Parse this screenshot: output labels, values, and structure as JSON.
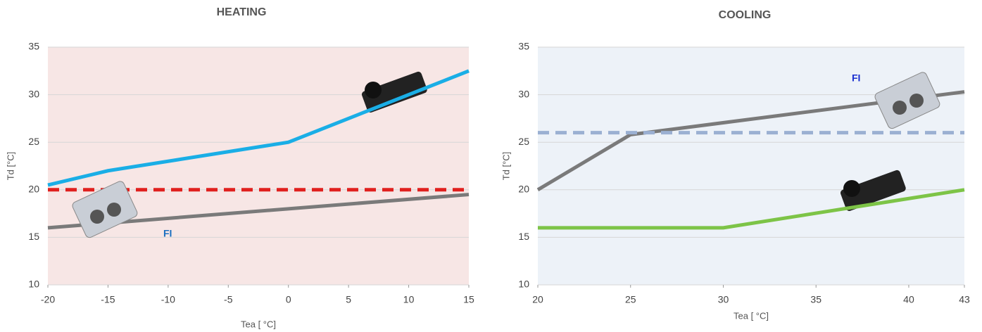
{
  "chart_data": [
    {
      "type": "line",
      "title": "HEATING",
      "x_label": "Tea [ °C]",
      "y_label": "Td [°C]",
      "xlim": [
        -20,
        15
      ],
      "xticks": [
        -20,
        -15,
        -10,
        -5,
        0,
        5,
        10,
        15
      ],
      "ylim": [
        10,
        35
      ],
      "yticks": [
        10,
        15,
        20,
        25,
        30,
        35
      ],
      "grid": true,
      "background": "#f7e6e5",
      "annotation": "FI",
      "annotation_color": "#1a6fc0",
      "series": [
        {
          "color": "#1aaee6",
          "x": [
            -20,
            -15,
            0,
            15
          ],
          "values": [
            20.5,
            22,
            25,
            32.5
          ]
        },
        {
          "color": "#e0201e",
          "dashed": true,
          "x": [
            -20,
            15
          ],
          "values": [
            20,
            20
          ]
        },
        {
          "color": "#7a7a7a",
          "x": [
            -20,
            15
          ],
          "values": [
            16,
            19.5
          ]
        }
      ]
    },
    {
      "type": "line",
      "title": "COOLING",
      "x_label": "Tea [ °C]",
      "y_label": "Td [°C]",
      "xlim": [
        20,
        43
      ],
      "xticks": [
        20,
        25,
        30,
        35,
        40,
        43
      ],
      "ylim": [
        10,
        35
      ],
      "yticks": [
        10,
        15,
        20,
        25,
        30,
        35
      ],
      "grid": true,
      "background": "#edf2f8",
      "annotation": "FI",
      "annotation_color": "#1a2fd0",
      "series": [
        {
          "color": "#7a7a7a",
          "x": [
            20,
            25,
            43
          ],
          "values": [
            20,
            25.8,
            30.3
          ]
        },
        {
          "color": "#9bb0d2",
          "dashed": true,
          "x": [
            20,
            43
          ],
          "values": [
            26,
            26
          ]
        },
        {
          "color": "#7dc447",
          "x": [
            20,
            30,
            43
          ],
          "values": [
            16,
            16,
            20
          ]
        }
      ]
    }
  ]
}
